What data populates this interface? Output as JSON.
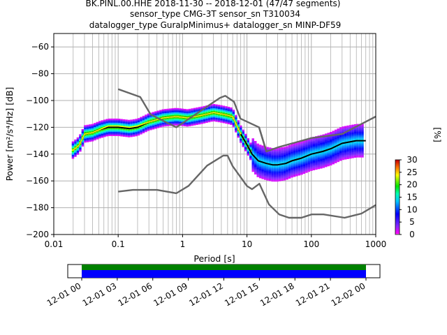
{
  "title_lines": [
    "BK.PINL.00.HHE   2018-11-30 -- 2018-12-01  (47/47 segments)",
    "sensor_type CMG-3T sensor_sn T310034",
    "datalogger_type GuralpMinimus+ datalogger_sn MINP-DF59"
  ],
  "chart_data": [
    {
      "type": "heatmap",
      "title": "BK.PINL.00.HHE   2018-11-30 -- 2018-12-01  (47/47 segments)",
      "xlabel": "Period [s]",
      "ylabel": "Power [m²/s⁴/Hz] [dB]",
      "xscale": "log",
      "xlim": [
        0.01,
        1000
      ],
      "ylim": [
        -200,
        -50
      ],
      "x_ticks": [
        "0.01",
        "0.1",
        "1",
        "10",
        "100",
        "1000"
      ],
      "y_ticks": [
        "−60",
        "−80",
        "−100",
        "−120",
        "−140",
        "−160",
        "−180",
        "−200"
      ],
      "colorbar": {
        "label": "[%]",
        "min": 0,
        "max": 30,
        "ticks": [
          "0",
          "5",
          "10",
          "15",
          "20",
          "25",
          "30"
        ]
      },
      "grid": true,
      "series": [
        {
          "type": "line",
          "color": "#000000",
          "role": "mode",
          "x": [
            0.02,
            0.025,
            0.03,
            0.04,
            0.05,
            0.07,
            0.1,
            0.15,
            0.2,
            0.3,
            0.5,
            0.8,
            1.2,
            2,
            3,
            4,
            5,
            6,
            8,
            10,
            12,
            15,
            20,
            25,
            30,
            40,
            50,
            70,
            100,
            150,
            200,
            300,
            500,
            700
          ],
          "y": [
            -137,
            -133,
            -125,
            -124,
            -122,
            -120,
            -120,
            -121,
            -120,
            -116,
            -113,
            -112,
            -113,
            -111,
            -109,
            -110,
            -111,
            -112,
            -125,
            -133,
            -140,
            -145,
            -147,
            -148,
            -148,
            -147,
            -145,
            -143,
            -140,
            -138,
            -136,
            -132,
            -130,
            -130
          ]
        },
        {
          "type": "line",
          "color": "#ffff00",
          "role": "mean",
          "x": [
            0.02,
            0.025,
            0.03,
            0.04,
            0.05,
            0.07,
            0.1,
            0.15,
            0.2,
            0.3,
            0.5,
            0.8,
            1.2,
            2,
            3,
            4,
            5,
            6,
            8
          ],
          "y": [
            -137,
            -133,
            -125,
            -124,
            -122,
            -119,
            -119,
            -120,
            -119,
            -116,
            -113,
            -112,
            -113,
            -111,
            -109,
            -110,
            -111,
            -112,
            -125
          ]
        },
        {
          "type": "line",
          "color": "#666666",
          "role": "NHNM",
          "x": [
            0.1,
            0.22,
            0.32,
            0.8,
            3.8,
            4.6,
            6.3,
            7.9,
            15.4,
            20
          ],
          "y": [
            -91.5,
            -97.4,
            -110.5,
            -120,
            -98,
            -96.5,
            -101,
            -113.5,
            -120,
            -138
          ]
        },
        {
          "type": "line",
          "color": "#666666",
          "role": "NLNM",
          "x": [
            0.1,
            0.17,
            0.4,
            0.8,
            1.24,
            2.4,
            4.3,
            5,
            6,
            10,
            12,
            15.6,
            21.9,
            31.6,
            45,
            70,
            101,
            154,
            328,
            600,
            1000
          ],
          "y": [
            -168,
            -166.7,
            -166.7,
            -169.2,
            -163.7,
            -148.6,
            -141.1,
            -141.1,
            -149,
            -163.8,
            -166.2,
            -162.1,
            -177.5,
            -185,
            -187.5,
            -187.5,
            -185,
            -185,
            -187.5,
            -184.4,
            -178
          ]
        },
        {
          "type": "line",
          "color": "#666666",
          "role": "NHNM-long-period",
          "x": [
            15.4,
            20,
            30,
            60,
            100,
            300,
            1000
          ],
          "y": [
            -120,
            -138,
            -135,
            -131,
            -128,
            -125,
            -112
          ]
        }
      ]
    },
    {
      "type": "bar",
      "role": "data-coverage",
      "xlim_labels": [
        "12-01 00",
        "12-02 00"
      ],
      "x_ticks": [
        "12-01 00",
        "12-01 03",
        "12-01 06",
        "12-01 09",
        "12-01 12",
        "12-01 15",
        "12-01 18",
        "12-01 21",
        "12-02 00"
      ],
      "coverage": [
        {
          "name": "segments",
          "color": "#008000",
          "start": "12-01 00",
          "end": "12-02 00"
        },
        {
          "name": "data",
          "color": "#0000ff",
          "start": "12-01 00",
          "end": "12-02 00"
        }
      ]
    }
  ]
}
